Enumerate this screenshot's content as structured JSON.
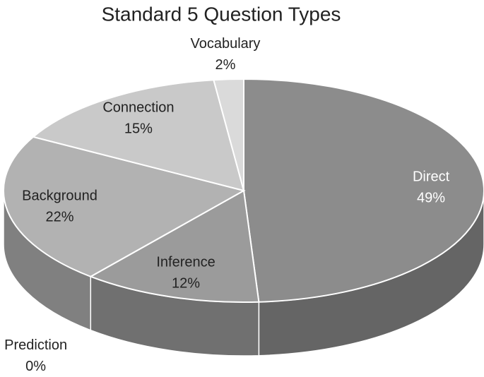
{
  "chart_data": {
    "type": "pie3d",
    "title": "Standard 5 Question Types",
    "categories": [
      "Direct",
      "Inference",
      "Prediction",
      "Background",
      "Connection",
      "Vocabulary"
    ],
    "values": [
      49,
      12,
      0,
      22,
      15,
      2
    ],
    "value_labels": [
      "49%",
      "12%",
      "0%",
      "22%",
      "15%",
      "2%"
    ],
    "colors": [
      "#8c8c8c",
      "#9b9b9b",
      "#a8a8a8",
      "#b2b2b2",
      "#c9c9c9",
      "#dadada"
    ]
  }
}
